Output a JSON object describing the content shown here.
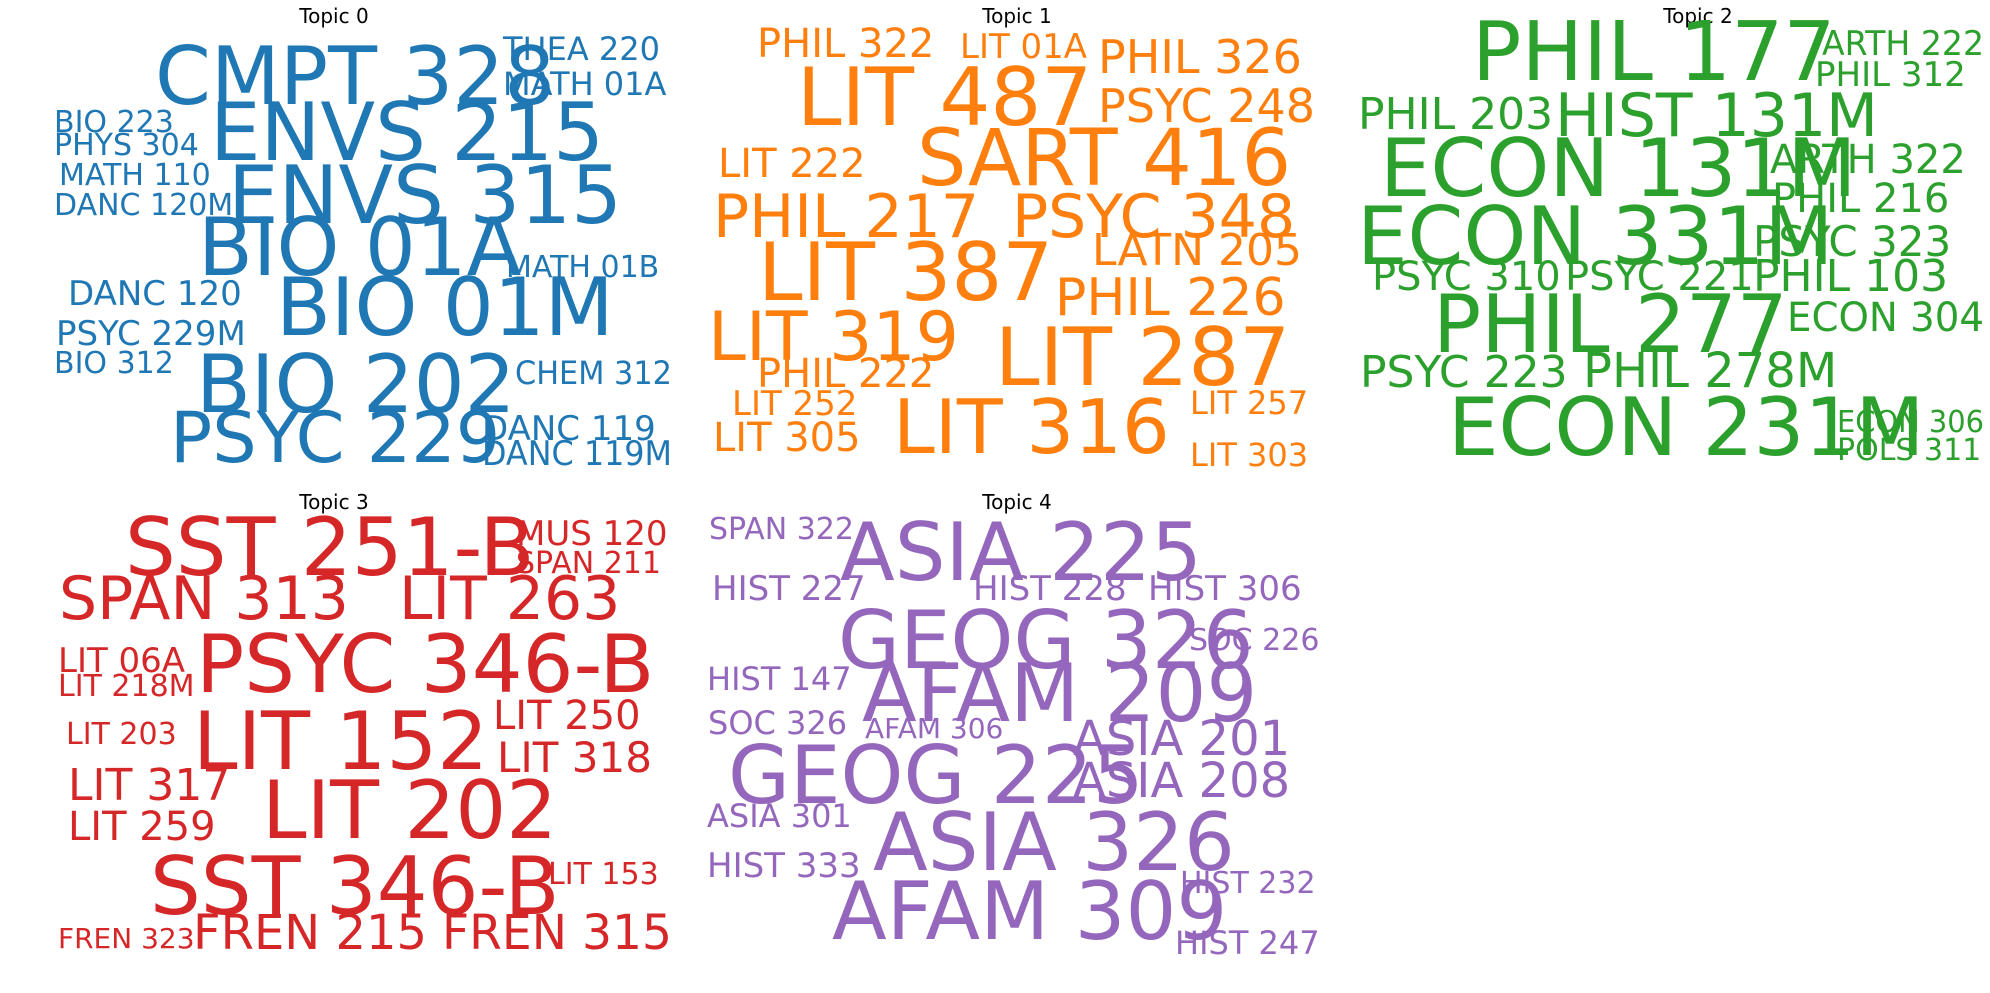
{
  "chart_data": [
    {
      "type": "wordcloud",
      "title": "Topic 0",
      "color": "#1f77b4",
      "words": [
        "CMPT 328",
        "THEA 220",
        "MATH 01A",
        "BIO 223",
        "PHYS 304",
        "ENVS 215",
        "MATH 110",
        "ENVS 315",
        "DANC 120M",
        "BIO 01A",
        "MATH 01B",
        "DANC 120",
        "BIO 01M",
        "PSYC 229M",
        "BIO 312",
        "BIO 202",
        "CHEM 312",
        "PSYC 229",
        "DANC 119",
        "DANC 119M"
      ]
    },
    {
      "type": "wordcloud",
      "title": "Topic 1",
      "color": "#ff7f0e",
      "words": [
        "PHIL 322",
        "LIT 01A",
        "PHIL 326",
        "LIT 487",
        "PSYC 248",
        "LIT 222",
        "SART 416",
        "PHIL 217",
        "PSYC 348",
        "LATN 205",
        "LIT 387",
        "PHIL 226",
        "LIT 319",
        "LIT 287",
        "PHIL 222",
        "LIT 252",
        "LIT 257",
        "LIT 305",
        "LIT 316",
        "LIT 303"
      ]
    },
    {
      "type": "wordcloud",
      "title": "Topic 2",
      "color": "#2ca02c",
      "words": [
        "PHIL 177",
        "ARTH 222",
        "PHIL 312",
        "PHIL 203",
        "HIST 131M",
        "ECON 131M",
        "ARTH 322",
        "PHIL 216",
        "ECON 331M",
        "PSYC 323",
        "PSYC 310",
        "PSYC 221",
        "PHIL 103",
        "PHIL 277",
        "ECON 304",
        "PSYC 223",
        "PHIL 278M",
        "ECON 231M",
        "ECON 306",
        "POLS 311"
      ]
    },
    {
      "type": "wordcloud",
      "title": "Topic 3",
      "color": "#d62728",
      "words": [
        "SST 251-B",
        "MUS 120",
        "SPAN 211",
        "SPAN 313",
        "LIT 263",
        "LIT 06A",
        "PSYC 346-B",
        "LIT 218M",
        "LIT 250",
        "LIT 203",
        "LIT 152",
        "LIT 318",
        "LIT 317",
        "LIT 202",
        "LIT 259",
        "SST 346-B",
        "LIT 153",
        "FREN 323",
        "FREN 215",
        "FREN 315"
      ]
    },
    {
      "type": "wordcloud",
      "title": "Topic 4",
      "color": "#9467bd",
      "words": [
        "SPAN 322",
        "ASIA 225",
        "HIST 227",
        "HIST 228",
        "HIST 306",
        "GEOG 326",
        "SOC 226",
        "HIST 147",
        "AFAM 209",
        "SOC 326",
        "AFAM 306",
        "ASIA 201",
        "GEOG 225",
        "ASIA 208",
        "ASIA 301",
        "ASIA 326",
        "HIST 333",
        "HIST 232",
        "AFAM 309",
        "HIST 247"
      ]
    }
  ]
}
